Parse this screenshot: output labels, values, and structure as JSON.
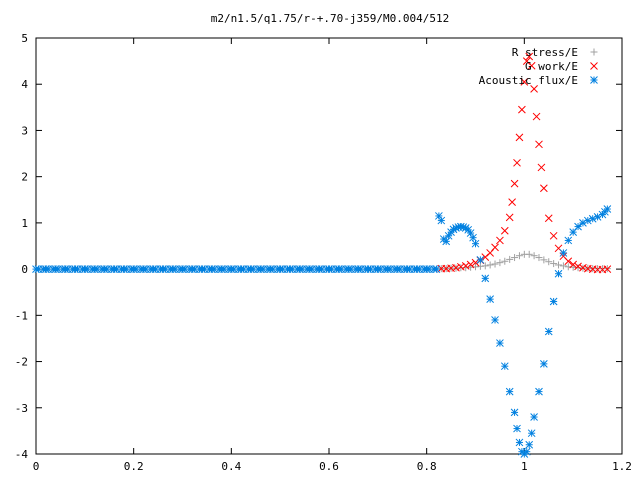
{
  "chart_data": {
    "type": "scatter",
    "title": "m2/n1.5/q1.75/r-+.70-j359/M0.004/512",
    "xlabel": "",
    "ylabel": "",
    "xlim": [
      0,
      1.2
    ],
    "ylim": [
      -4,
      5
    ],
    "x_ticks": [
      0,
      0.2,
      0.4,
      0.6,
      0.8,
      1,
      1.2
    ],
    "x_tick_labels": [
      "0",
      "0.2",
      "0.4",
      "0.6",
      "0.8",
      "1",
      "1.2"
    ],
    "y_ticks": [
      -4,
      -3,
      -2,
      -1,
      0,
      1,
      2,
      3,
      4,
      5
    ],
    "y_tick_labels": [
      "-4",
      "-3",
      "-2",
      "-1",
      "0",
      "1",
      "2",
      "3",
      "4",
      "5"
    ],
    "grid": false,
    "legend_position": "top-right",
    "series": [
      {
        "name": "R stress/E",
        "marker": "plus",
        "color": "#a0a0a0",
        "points": [
          [
            0.83,
            0.01
          ],
          [
            0.84,
            0.01
          ],
          [
            0.85,
            0.02
          ],
          [
            0.86,
            0.02
          ],
          [
            0.87,
            0.03
          ],
          [
            0.88,
            0.03
          ],
          [
            0.89,
            0.04
          ],
          [
            0.9,
            0.05
          ],
          [
            0.91,
            0.06
          ],
          [
            0.92,
            0.07
          ],
          [
            0.93,
            0.09
          ],
          [
            0.94,
            0.11
          ],
          [
            0.95,
            0.14
          ],
          [
            0.96,
            0.17
          ],
          [
            0.97,
            0.21
          ],
          [
            0.98,
            0.25
          ],
          [
            0.99,
            0.29
          ],
          [
            1.0,
            0.32
          ],
          [
            1.01,
            0.32
          ],
          [
            1.02,
            0.29
          ],
          [
            1.03,
            0.25
          ],
          [
            1.04,
            0.2
          ],
          [
            1.05,
            0.16
          ],
          [
            1.06,
            0.12
          ],
          [
            1.07,
            0.09
          ],
          [
            1.08,
            0.07
          ],
          [
            1.09,
            0.05
          ],
          [
            1.1,
            0.04
          ],
          [
            1.11,
            0.03
          ],
          [
            1.12,
            0.02
          ],
          [
            1.13,
            0.02
          ],
          [
            1.14,
            0.01
          ],
          [
            1.15,
            0.01
          ],
          [
            1.16,
            0.01
          ],
          [
            1.17,
            0.01
          ]
        ]
      },
      {
        "name": "G work/E",
        "marker": "cross",
        "color": "#ff0000",
        "points": [
          [
            0.83,
            0.01
          ],
          [
            0.84,
            0.01
          ],
          [
            0.85,
            0.02
          ],
          [
            0.86,
            0.03
          ],
          [
            0.87,
            0.05
          ],
          [
            0.88,
            0.07
          ],
          [
            0.89,
            0.1
          ],
          [
            0.9,
            0.14
          ],
          [
            0.91,
            0.19
          ],
          [
            0.92,
            0.26
          ],
          [
            0.93,
            0.35
          ],
          [
            0.94,
            0.47
          ],
          [
            0.95,
            0.62
          ],
          [
            0.96,
            0.83
          ],
          [
            0.97,
            1.12
          ],
          [
            0.975,
            1.45
          ],
          [
            0.98,
            1.85
          ],
          [
            0.985,
            2.3
          ],
          [
            0.99,
            2.85
          ],
          [
            0.995,
            3.45
          ],
          [
            1.0,
            4.05
          ],
          [
            1.005,
            4.5
          ],
          [
            1.01,
            4.6
          ],
          [
            1.015,
            4.4
          ],
          [
            1.02,
            3.9
          ],
          [
            1.025,
            3.3
          ],
          [
            1.03,
            2.7
          ],
          [
            1.035,
            2.2
          ],
          [
            1.04,
            1.75
          ],
          [
            1.05,
            1.1
          ],
          [
            1.06,
            0.72
          ],
          [
            1.07,
            0.45
          ],
          [
            1.08,
            0.28
          ],
          [
            1.09,
            0.17
          ],
          [
            1.1,
            0.1
          ],
          [
            1.11,
            0.06
          ],
          [
            1.12,
            0.03
          ],
          [
            1.13,
            0.01
          ],
          [
            1.14,
            0.0
          ],
          [
            1.15,
            -0.01
          ],
          [
            1.16,
            -0.01
          ],
          [
            1.17,
            0.0
          ]
        ]
      },
      {
        "name": "Acoustic flux/E",
        "marker": "star",
        "color": "#0080e0",
        "points": [
          [
            0.0,
            0.0
          ],
          [
            0.02,
            0.0
          ],
          [
            0.04,
            0.0
          ],
          [
            0.06,
            0.0
          ],
          [
            0.08,
            0.0
          ],
          [
            0.1,
            0.0
          ],
          [
            0.12,
            0.0
          ],
          [
            0.14,
            0.0
          ],
          [
            0.16,
            0.0
          ],
          [
            0.18,
            0.0
          ],
          [
            0.2,
            0.0
          ],
          [
            0.22,
            0.0
          ],
          [
            0.24,
            0.0
          ],
          [
            0.26,
            0.0
          ],
          [
            0.28,
            0.0
          ],
          [
            0.3,
            0.0
          ],
          [
            0.32,
            0.0
          ],
          [
            0.34,
            0.0
          ],
          [
            0.36,
            0.0
          ],
          [
            0.38,
            0.0
          ],
          [
            0.4,
            0.0
          ],
          [
            0.42,
            0.0
          ],
          [
            0.44,
            0.0
          ],
          [
            0.46,
            0.0
          ],
          [
            0.48,
            0.0
          ],
          [
            0.5,
            0.0
          ],
          [
            0.52,
            0.0
          ],
          [
            0.54,
            0.0
          ],
          [
            0.56,
            0.0
          ],
          [
            0.58,
            0.0
          ],
          [
            0.6,
            0.0
          ],
          [
            0.62,
            0.0
          ],
          [
            0.64,
            0.0
          ],
          [
            0.66,
            0.0
          ],
          [
            0.68,
            0.0
          ],
          [
            0.7,
            0.0
          ],
          [
            0.72,
            0.0
          ],
          [
            0.74,
            0.0
          ],
          [
            0.76,
            0.0
          ],
          [
            0.78,
            0.0
          ],
          [
            0.8,
            0.0
          ],
          [
            0.82,
            0.0
          ],
          [
            0.825,
            1.15
          ],
          [
            0.83,
            1.05
          ],
          [
            0.835,
            0.65
          ],
          [
            0.84,
            0.6
          ],
          [
            0.845,
            0.72
          ],
          [
            0.85,
            0.8
          ],
          [
            0.855,
            0.86
          ],
          [
            0.86,
            0.89
          ],
          [
            0.865,
            0.91
          ],
          [
            0.87,
            0.92
          ],
          [
            0.875,
            0.91
          ],
          [
            0.88,
            0.89
          ],
          [
            0.885,
            0.85
          ],
          [
            0.89,
            0.78
          ],
          [
            0.895,
            0.68
          ],
          [
            0.9,
            0.55
          ],
          [
            0.91,
            0.2
          ],
          [
            0.92,
            -0.2
          ],
          [
            0.93,
            -0.65
          ],
          [
            0.94,
            -1.1
          ],
          [
            0.95,
            -1.6
          ],
          [
            0.96,
            -2.1
          ],
          [
            0.97,
            -2.65
          ],
          [
            0.98,
            -3.1
          ],
          [
            0.985,
            -3.45
          ],
          [
            0.99,
            -3.75
          ],
          [
            0.995,
            -3.95
          ],
          [
            1.0,
            -4.0
          ],
          [
            1.005,
            -3.95
          ],
          [
            1.01,
            -3.8
          ],
          [
            1.015,
            -3.55
          ],
          [
            1.02,
            -3.2
          ],
          [
            1.03,
            -2.65
          ],
          [
            1.04,
            -2.05
          ],
          [
            1.05,
            -1.35
          ],
          [
            1.06,
            -0.7
          ],
          [
            1.07,
            -0.1
          ],
          [
            1.08,
            0.35
          ],
          [
            1.09,
            0.62
          ],
          [
            1.1,
            0.8
          ],
          [
            1.11,
            0.92
          ],
          [
            1.12,
            1.0
          ],
          [
            1.13,
            1.05
          ],
          [
            1.14,
            1.09
          ],
          [
            1.15,
            1.13
          ],
          [
            1.16,
            1.18
          ],
          [
            1.165,
            1.24
          ],
          [
            1.17,
            1.3
          ]
        ]
      }
    ]
  }
}
